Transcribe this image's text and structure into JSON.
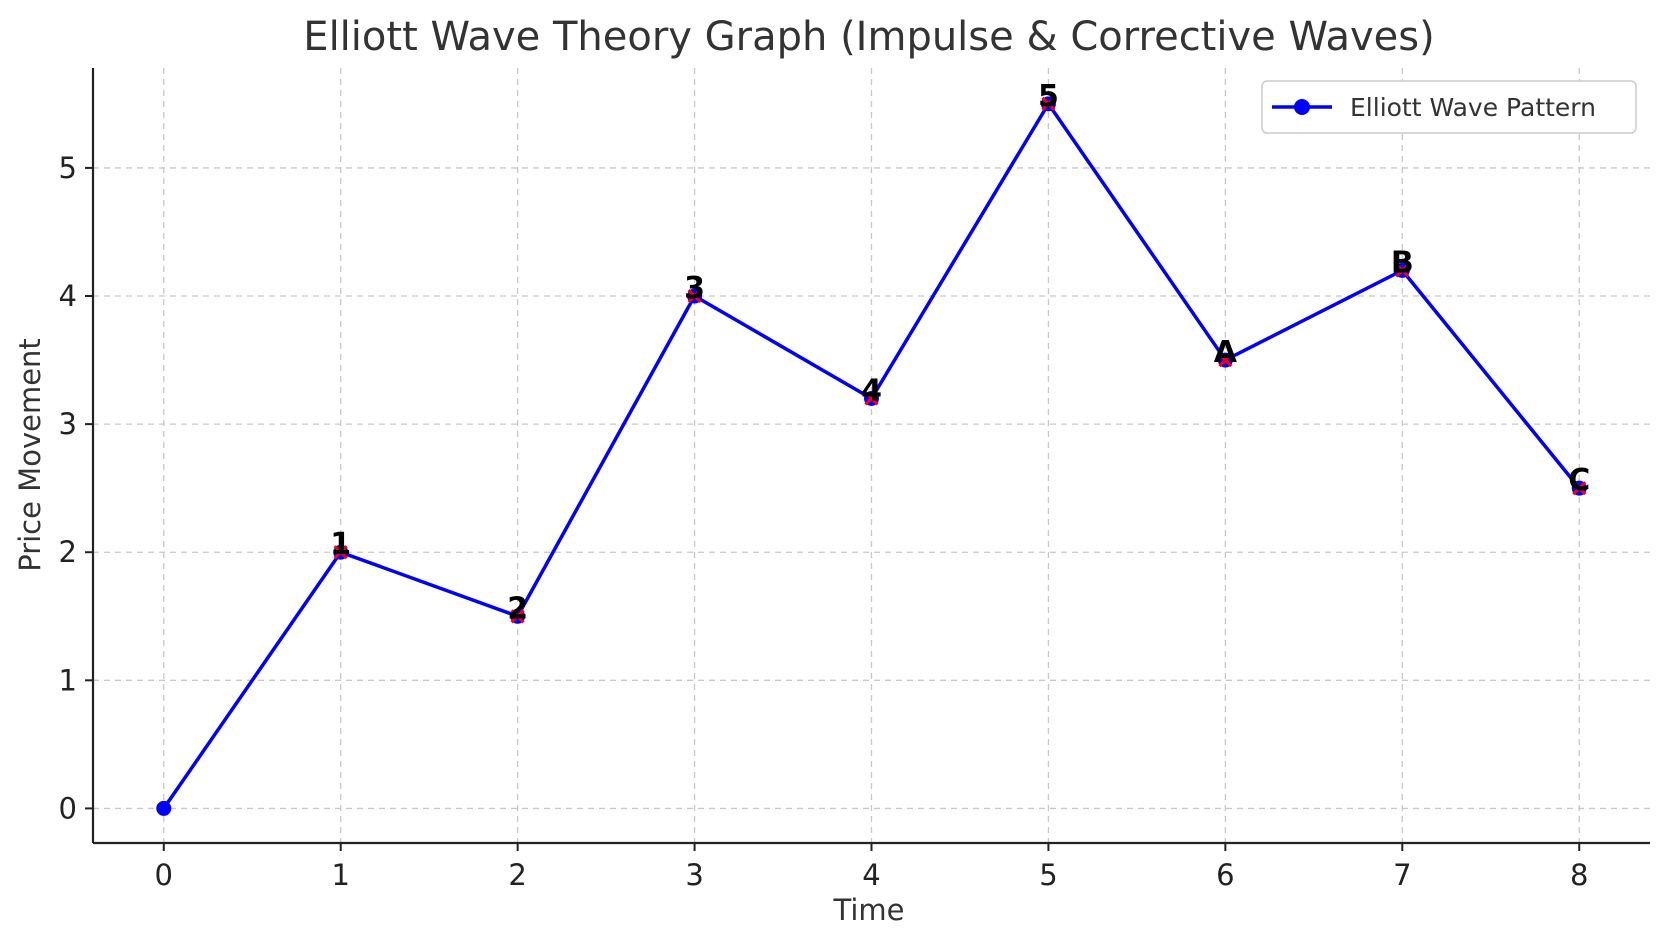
{
  "chart_data": {
    "type": "line",
    "title": "Elliott Wave Theory Graph (Impulse & Corrective Waves)",
    "xlabel": "Time",
    "ylabel": "Price Movement",
    "xlim": [
      -0.4,
      8.4
    ],
    "ylim": [
      -0.27,
      5.78
    ],
    "x_ticks": [
      0,
      1,
      2,
      3,
      4,
      5,
      6,
      7,
      8
    ],
    "y_ticks": [
      0,
      1,
      2,
      3,
      4,
      5
    ],
    "grid": true,
    "legend_position": "top-right",
    "series": [
      {
        "name": "Elliott Wave Pattern",
        "color": "#0000ff",
        "marker": "circle",
        "x": [
          0,
          1,
          2,
          3,
          4,
          5,
          6,
          7,
          8
        ],
        "y": [
          0,
          2,
          1.5,
          4,
          3.2,
          5.5,
          3.5,
          4.2,
          2.5
        ]
      }
    ],
    "annotations": [
      {
        "text": "1",
        "x": 1,
        "y": 2
      },
      {
        "text": "2",
        "x": 2,
        "y": 1.5
      },
      {
        "text": "3",
        "x": 3,
        "y": 4
      },
      {
        "text": "4",
        "x": 4,
        "y": 3.2
      },
      {
        "text": "5",
        "x": 5,
        "y": 5.5
      },
      {
        "text": "A",
        "x": 6,
        "y": 3.5
      },
      {
        "text": "B",
        "x": 7,
        "y": 4.2
      },
      {
        "text": "C",
        "x": 8,
        "y": 2.5
      }
    ],
    "annotation_marker": {
      "shape": "x",
      "color": "#ff0000"
    }
  }
}
